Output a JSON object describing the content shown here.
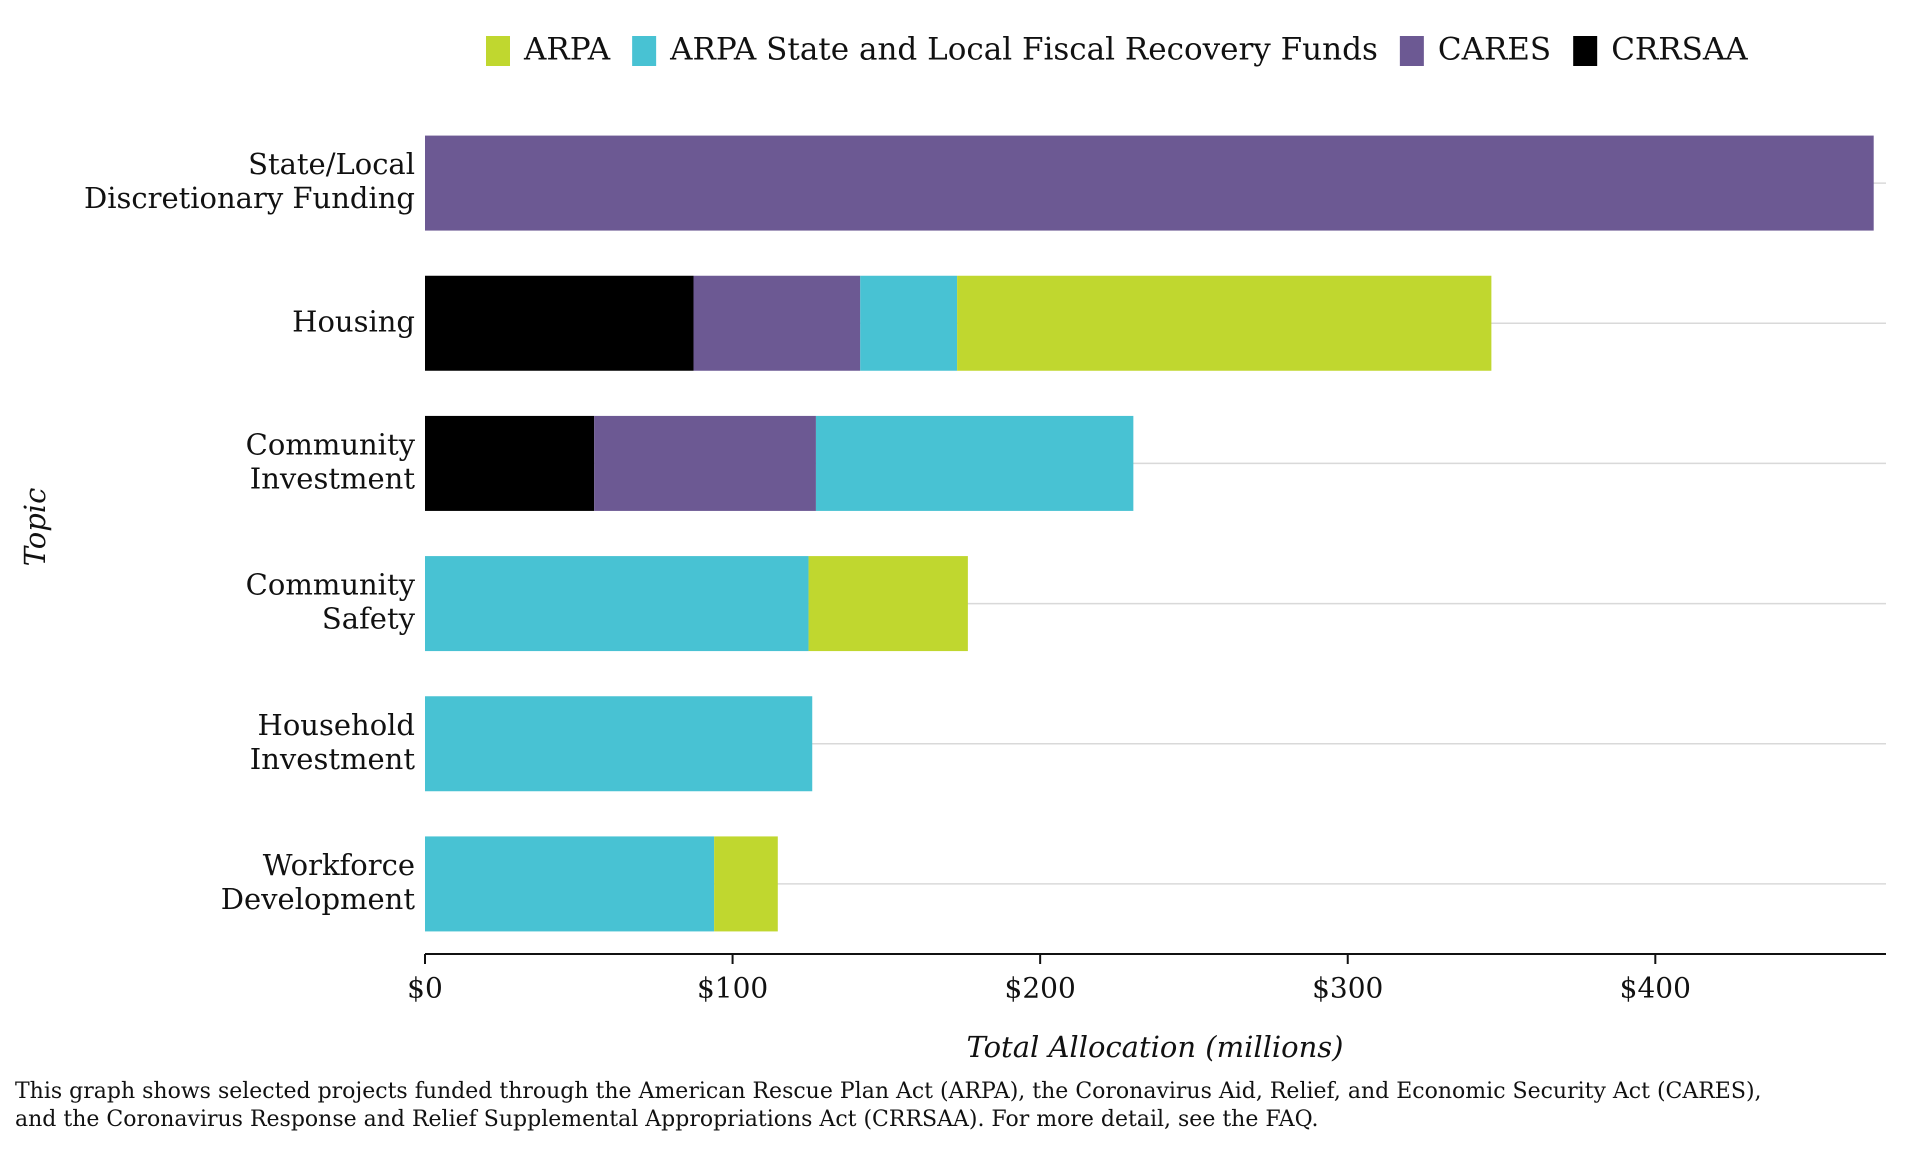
{
  "chart_data": {
    "type": "stacked-barh",
    "x_label": "Total Allocation (millions)",
    "y_label": "Topic",
    "footnote": [
      "This graph shows selected projects funded through the American Rescue Plan Act (ARPA), the Coronavirus Aid, Relief, and Economic Security Act (CARES),",
      "and the Coronavirus Response and Relief Supplemental Appropriations Act (CRRSAA). For more detail, see the FAQ."
    ],
    "categories": [
      "State/Local\nDiscretionary Funding",
      "Housing",
      "Community\nInvestment",
      "Community\nSafety",
      "Household\nInvestment",
      "Workforce\nDevelopment"
    ],
    "series": [
      {
        "name": "ARPA",
        "color": "#c0d72f",
        "values": [
          null,
          173.7,
          null,
          51.8,
          null,
          20.7
        ]
      },
      {
        "name": "ARPA State and Local Fiscal Recovery Funds",
        "color": "#48c2d3",
        "values": [
          null,
          31.5,
          103.2,
          124.7,
          125.9,
          94
        ]
      },
      {
        "name": "CARES",
        "color": "#6c5993",
        "values": [
          471,
          54.2,
          72.1,
          null,
          null,
          null
        ]
      },
      {
        "name": "CRRSAA",
        "color": "#000000",
        "values": [
          null,
          87.3,
          55,
          null,
          null,
          null
        ]
      }
    ],
    "xlim": [
      0,
      475
    ],
    "xticks": [
      {
        "value": 0,
        "label": "$0"
      },
      {
        "value": 100,
        "label": "$100"
      },
      {
        "value": 200,
        "label": "$200"
      },
      {
        "value": 300,
        "label": "$300"
      },
      {
        "value": 400,
        "label": "$400"
      }
    ],
    "grid": true,
    "legend": "top"
  }
}
